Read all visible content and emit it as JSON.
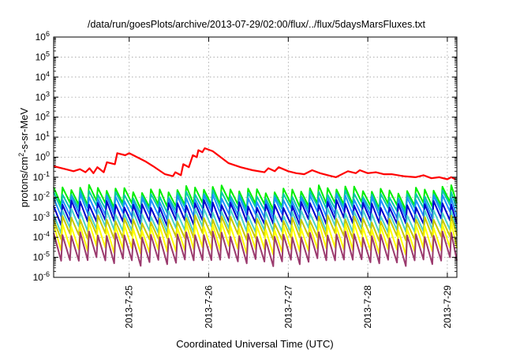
{
  "chart_data": {
    "type": "line",
    "title": "/data/run/goesPlots/archive/2013-07-29/02:00/flux/../flux/5daysMarsFluxes.txt",
    "xlabel": "Coordinated Universal Time (UTC)",
    "ylabel": {
      "base": "protons/cm",
      "sup": "2",
      "rest": "-s-sr-MeV"
    },
    "yscale": "log",
    "ylim_exp": [
      -6,
      6
    ],
    "y_tick_exponents": [
      6,
      5,
      4,
      3,
      2,
      1,
      0,
      -1,
      -2,
      -3,
      -4,
      -5,
      -6
    ],
    "x_range_days": [
      -0.95,
      4.12
    ],
    "x_ticks": [
      {
        "label": "2013-7-25",
        "day": 0
      },
      {
        "label": "2013-7-26",
        "day": 1
      },
      {
        "label": "2013-7-27",
        "day": 2
      },
      {
        "label": "2013-7-28",
        "day": 3
      },
      {
        "label": "2013-7-29",
        "day": 4
      }
    ],
    "grid": true,
    "series": [
      {
        "color": "#ff0000",
        "profile": "p1",
        "points": [
          [
            -0.95,
            -0.45
          ],
          [
            -0.8,
            -0.6
          ],
          [
            -0.7,
            -0.7
          ],
          [
            -0.62,
            -0.6
          ],
          [
            -0.55,
            -0.75
          ],
          [
            -0.5,
            -0.55
          ],
          [
            -0.45,
            -0.8
          ],
          [
            -0.4,
            -0.5
          ],
          [
            -0.32,
            -0.75
          ],
          [
            -0.28,
            -0.25
          ],
          [
            -0.18,
            -0.35
          ],
          [
            -0.15,
            0.2
          ],
          [
            -0.05,
            0.1
          ],
          [
            0.0,
            0.2
          ],
          [
            0.1,
            0.0
          ],
          [
            0.2,
            -0.2
          ],
          [
            0.3,
            -0.45
          ],
          [
            0.45,
            -0.85
          ],
          [
            0.55,
            -0.95
          ],
          [
            0.58,
            -0.75
          ],
          [
            0.65,
            -0.9
          ],
          [
            0.68,
            -0.35
          ],
          [
            0.75,
            -0.5
          ],
          [
            0.8,
            0.1
          ],
          [
            0.85,
            0.0
          ],
          [
            0.87,
            0.35
          ],
          [
            0.92,
            0.25
          ],
          [
            0.95,
            0.45
          ],
          [
            1.05,
            0.3
          ],
          [
            1.15,
            0.0
          ],
          [
            1.25,
            -0.3
          ],
          [
            1.4,
            -0.5
          ],
          [
            1.55,
            -0.65
          ],
          [
            1.7,
            -0.75
          ],
          [
            1.75,
            -0.55
          ],
          [
            1.83,
            -0.7
          ],
          [
            1.88,
            -0.5
          ],
          [
            2.0,
            -0.7
          ],
          [
            2.1,
            -0.8
          ],
          [
            2.2,
            -0.85
          ],
          [
            2.3,
            -0.65
          ],
          [
            2.4,
            -0.8
          ],
          [
            2.5,
            -0.9
          ],
          [
            2.6,
            -1.0
          ],
          [
            2.75,
            -0.7
          ],
          [
            2.85,
            -0.8
          ],
          [
            2.9,
            -0.65
          ],
          [
            3.0,
            -0.8
          ],
          [
            3.1,
            -0.75
          ],
          [
            3.2,
            -0.85
          ],
          [
            3.3,
            -0.85
          ],
          [
            3.45,
            -0.95
          ],
          [
            3.6,
            -1.0
          ],
          [
            3.7,
            -0.9
          ],
          [
            3.8,
            -1.05
          ],
          [
            3.9,
            -1.0
          ],
          [
            4.0,
            -1.1
          ],
          [
            4.05,
            -1.0
          ],
          [
            4.1,
            -1.1
          ]
        ]
      },
      {
        "color": "#00ee00",
        "profile": "sawtooth",
        "lo": -2.35,
        "hi": -1.6
      },
      {
        "color": "#00c8a8",
        "profile": "sawtooth",
        "lo": -2.55,
        "hi": -1.85
      },
      {
        "color": "#1e90ff",
        "profile": "sawtooth",
        "lo": -2.85,
        "hi": -2.05
      },
      {
        "color": "#0000cc",
        "profile": "sawtooth",
        "lo": -3.2,
        "hi": -2.35
      },
      {
        "color": "#48d1cc",
        "profile": "sawtooth",
        "lo": -3.6,
        "hi": -2.75
      },
      {
        "color": "#c8c800",
        "profile": "sawtooth",
        "lo": -3.95,
        "hi": -3.1
      },
      {
        "color": "#ffff00",
        "profile": "sawtooth",
        "lo": -4.6,
        "hi": -3.45
      },
      {
        "color": "#9b3a6e",
        "profile": "sawtooth",
        "lo": -5.15,
        "hi": -3.9
      }
    ]
  }
}
